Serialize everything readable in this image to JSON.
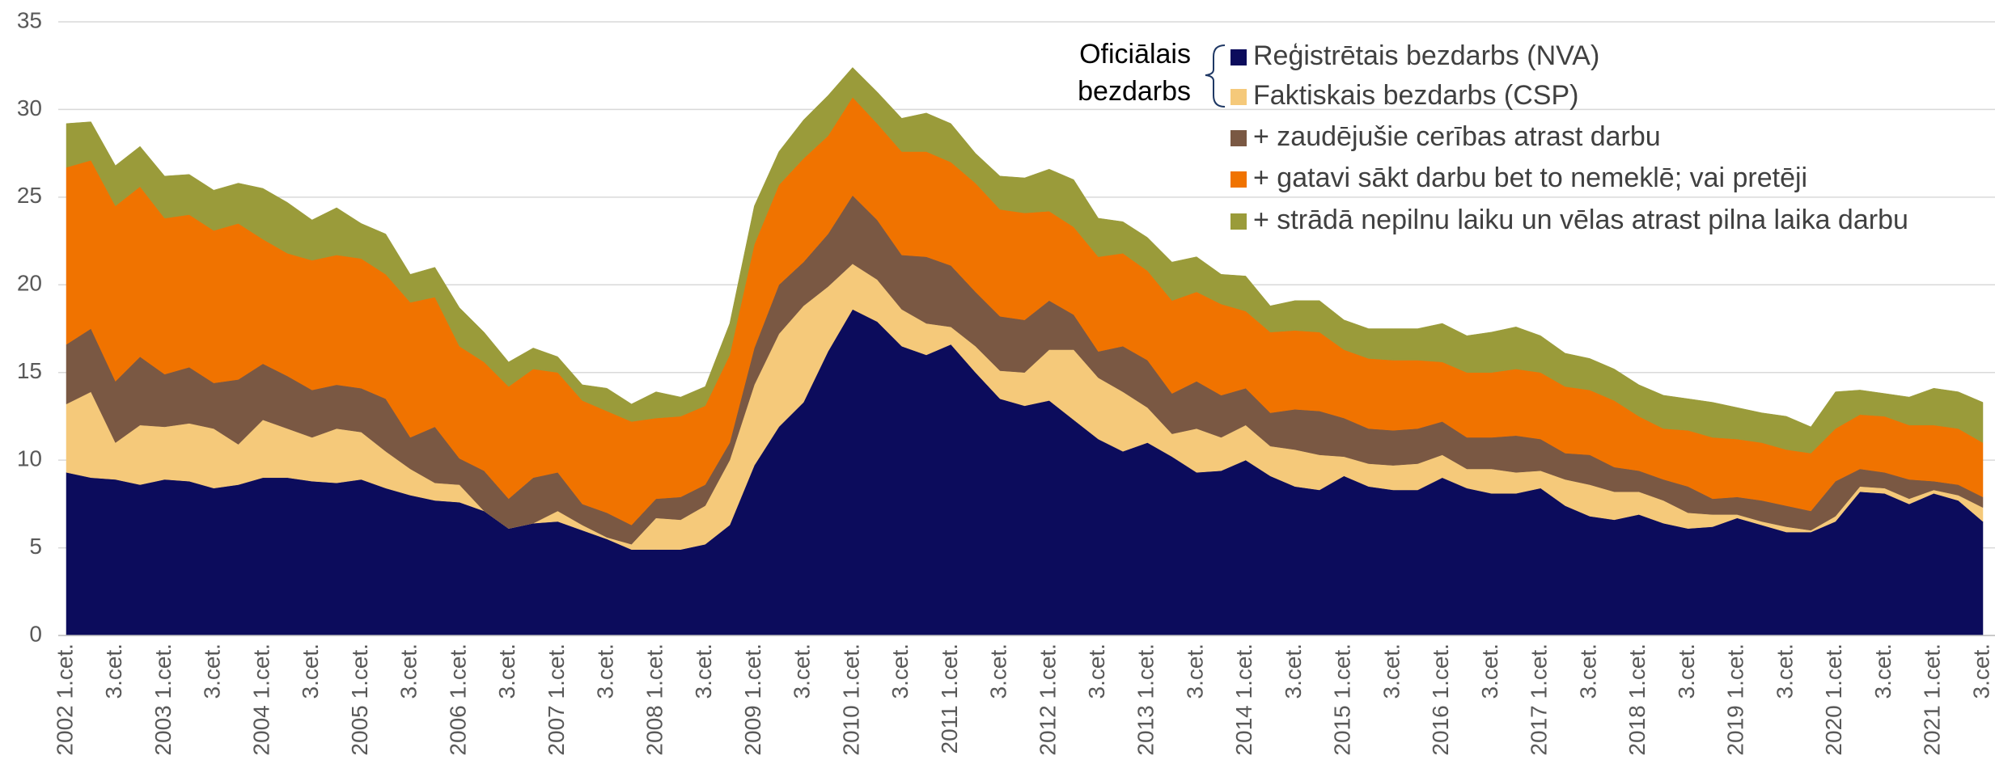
{
  "chart_data": {
    "type": "stacked_area",
    "annotation": [
      "Oficiālais",
      "bezdarbs"
    ],
    "categories": [
      "2002 1.cet.",
      null,
      "3.cet.",
      null,
      "2003 1.cet.",
      null,
      "3.cet.",
      null,
      "2004 1.cet.",
      null,
      "3.cet.",
      null,
      "2005 1.cet.",
      null,
      "3.cet.",
      null,
      "2006 1.cet.",
      null,
      "3.cet.",
      null,
      "2007 1.cet.",
      null,
      "3.cet.",
      null,
      "2008 1.cet.",
      null,
      "3.cet.",
      null,
      "2009 1.cet.",
      null,
      "3.cet.",
      null,
      "2010 1.cet.",
      null,
      "3.cet.",
      null,
      "2011 1.cet.",
      null,
      "3.cet.",
      null,
      "2012 1.cet.",
      null,
      "3.cet.",
      null,
      "2013 1.cet.",
      null,
      "3.cet.",
      null,
      "2014 1.cet.",
      null,
      "3.cet.",
      null,
      "2015 1.cet.",
      null,
      "3.cet.",
      null,
      "2016 1.cet.",
      null,
      "3.cet.",
      null,
      "2017 1.cet.",
      null,
      "3.cet.",
      null,
      "2018 1.cet.",
      null,
      "3.cet.",
      null,
      "2019 1.cet.",
      null,
      "3.cet.",
      null,
      "2020 1.cet.",
      null,
      "3.cet.",
      null,
      "2021 1.cet.",
      null,
      "3.cet."
    ],
    "series": [
      {
        "name": "Reģistrētais bezdarbs (NVA)",
        "color": "#0c0c5c",
        "values": [
          9.3,
          9.0,
          8.9,
          8.6,
          8.9,
          8.8,
          8.4,
          8.6,
          9.0,
          9.0,
          8.8,
          8.7,
          8.9,
          8.4,
          8.0,
          7.7,
          7.6,
          7.1,
          6.1,
          6.4,
          6.5,
          6.0,
          5.5,
          4.9,
          4.9,
          4.9,
          5.2,
          6.3,
          9.7,
          11.9,
          13.3,
          16.2,
          18.6,
          17.9,
          16.5,
          16.0,
          16.6,
          15.0,
          13.5,
          13.1,
          13.4,
          12.3,
          11.2,
          10.5,
          11.0,
          10.2,
          9.3,
          9.4,
          10.0,
          9.1,
          8.5,
          8.3,
          9.1,
          8.5,
          8.3,
          8.3,
          9.0,
          8.4,
          8.1,
          8.1,
          8.4,
          7.4,
          6.8,
          6.6,
          6.9,
          6.4,
          6.1,
          6.2,
          6.7,
          6.3,
          5.9,
          5.9,
          6.5,
          8.2,
          8.1,
          7.5,
          8.1,
          7.7,
          6.5
        ]
      },
      {
        "name": "Faktiskais bezdarbs (CSP)",
        "color": "#f5c97a",
        "values": [
          3.9,
          4.9,
          2.1,
          3.4,
          3.0,
          3.3,
          3.4,
          2.3,
          3.3,
          2.8,
          2.5,
          3.1,
          2.7,
          2.1,
          1.5,
          1.0,
          1.0,
          0,
          0,
          0,
          0.6,
          0.3,
          0.1,
          0.3,
          1.8,
          1.7,
          2.2,
          3.7,
          4.6,
          5.3,
          5.5,
          3.7,
          2.6,
          2.4,
          2.1,
          1.8,
          1.0,
          1.5,
          1.6,
          1.9,
          2.9,
          4.0,
          3.5,
          3.4,
          2.0,
          1.3,
          2.5,
          1.9,
          2.0,
          1.7,
          2.1,
          2.0,
          1.1,
          1.3,
          1.4,
          1.5,
          1.3,
          1.1,
          1.4,
          1.2,
          1.0,
          1.5,
          1.8,
          1.6,
          1.3,
          1.3,
          0.9,
          0.7,
          0.2,
          0.2,
          0.3,
          0.1,
          0.3,
          0.3,
          0.3,
          0.3,
          0.2,
          0.3,
          0.8
        ]
      },
      {
        "name": "+ zaudējušie cerības atrast darbu",
        "color": "#7a5843",
        "values": [
          3.4,
          3.6,
          3.5,
          3.9,
          3.0,
          3.2,
          2.6,
          3.7,
          3.2,
          3.0,
          2.7,
          2.5,
          2.5,
          3.0,
          1.8,
          3.2,
          1.5,
          2.3,
          1.7,
          2.6,
          2.2,
          1.2,
          1.4,
          1.1,
          1.1,
          1.3,
          1.2,
          1.0,
          2.1,
          2.8,
          2.5,
          3.0,
          3.9,
          3.4,
          3.1,
          3.8,
          3.5,
          3.1,
          3.1,
          3.0,
          2.8,
          2.0,
          1.5,
          2.6,
          2.7,
          2.3,
          2.7,
          2.4,
          2.1,
          1.9,
          2.3,
          2.5,
          2.2,
          2.0,
          2.0,
          2.0,
          1.9,
          1.8,
          1.8,
          2.1,
          1.8,
          1.5,
          1.7,
          1.4,
          1.2,
          1.2,
          1.5,
          0.9,
          1.0,
          1.2,
          1.2,
          1.1,
          2.0,
          1.0,
          0.9,
          1.1,
          0.5,
          0.6,
          0.6
        ]
      },
      {
        "name": "+ gatavi sākt darbu bet to nemeklē; vai pretēji",
        "color": "#f07300",
        "values": [
          10.1,
          9.6,
          10.0,
          9.7,
          8.9,
          8.7,
          8.7,
          8.9,
          7.1,
          7.0,
          7.4,
          7.4,
          7.4,
          7.1,
          7.7,
          7.4,
          6.4,
          6.2,
          6.4,
          6.2,
          5.7,
          5.9,
          5.8,
          5.9,
          4.6,
          4.6,
          4.5,
          5.0,
          5.9,
          5.7,
          5.9,
          5.6,
          5.6,
          5.5,
          5.9,
          6.0,
          5.9,
          6.2,
          6.1,
          6.1,
          5.1,
          5.0,
          5.4,
          5.3,
          5.1,
          5.3,
          5.1,
          5.2,
          4.4,
          4.6,
          4.5,
          4.5,
          3.9,
          4.0,
          4.0,
          3.9,
          3.4,
          3.7,
          3.7,
          3.8,
          3.8,
          3.8,
          3.7,
          3.8,
          3.1,
          2.9,
          3.2,
          3.5,
          3.3,
          3.3,
          3.2,
          3.3,
          3.0,
          3.1,
          3.2,
          3.1,
          3.2,
          3.2,
          3.1
        ]
      },
      {
        "name": "+ strādā nepilnu laiku un vēlas atrast pilna laika darbu",
        "color": "#9a9b3a",
        "values": [
          2.5,
          2.2,
          2.3,
          2.3,
          2.4,
          2.3,
          2.3,
          2.3,
          2.9,
          2.9,
          2.3,
          2.7,
          2.0,
          2.3,
          1.6,
          1.7,
          2.2,
          1.7,
          1.4,
          1.2,
          0.9,
          0.9,
          1.3,
          1.0,
          1.5,
          1.1,
          1.1,
          1.8,
          2.2,
          1.9,
          2.2,
          2.3,
          1.7,
          1.8,
          1.9,
          2.2,
          2.2,
          1.7,
          1.9,
          2.0,
          2.4,
          2.7,
          2.2,
          1.8,
          1.9,
          2.2,
          2.0,
          1.7,
          2.0,
          1.5,
          1.7,
          1.8,
          1.7,
          1.7,
          1.8,
          1.8,
          2.2,
          2.1,
          2.3,
          2.4,
          2.1,
          1.9,
          1.8,
          1.8,
          1.8,
          1.9,
          1.8,
          2.0,
          1.8,
          1.7,
          1.9,
          1.5,
          2.1,
          1.4,
          1.3,
          1.6,
          2.1,
          2.1,
          2.3
        ]
      }
    ],
    "ylim": [
      0,
      35
    ],
    "yticks": [
      0,
      5,
      10,
      15,
      20,
      25,
      30,
      35
    ],
    "grid": true
  }
}
